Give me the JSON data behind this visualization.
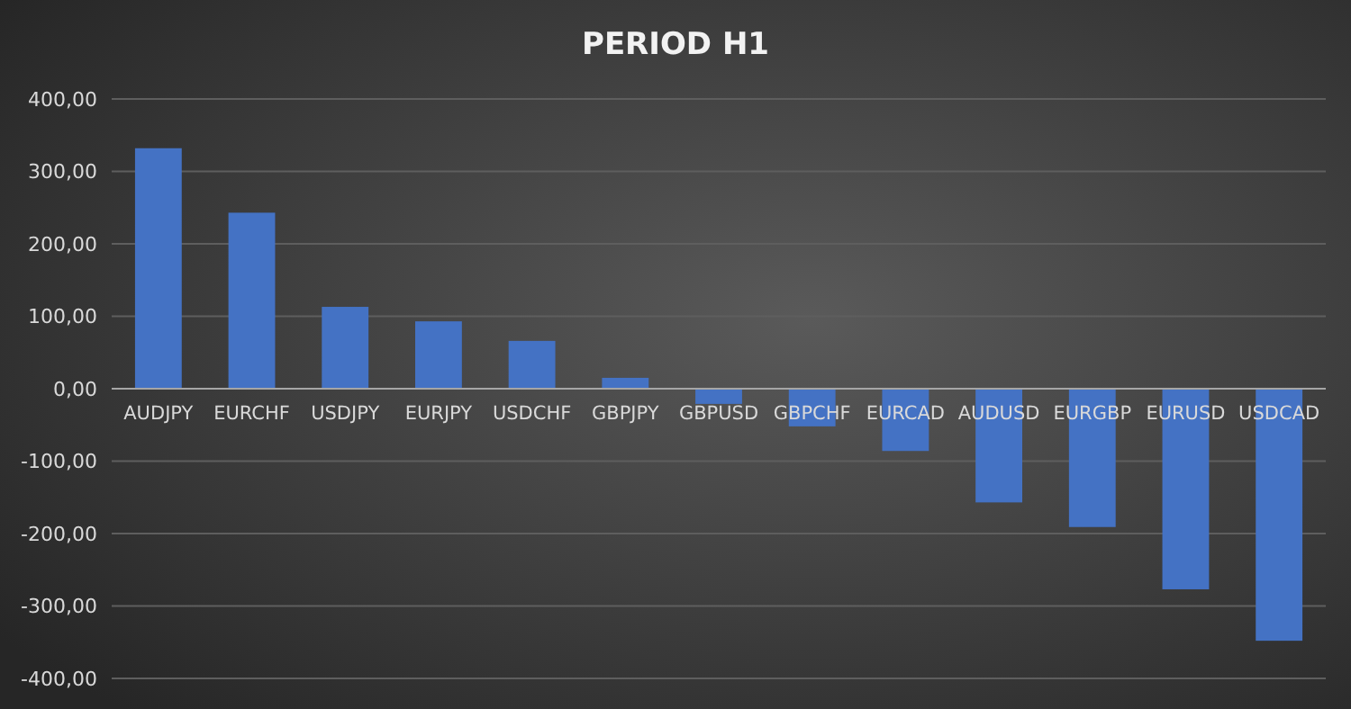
{
  "chart_data": {
    "type": "bar",
    "title": "PERIOD H1",
    "categories": [
      "AUDJPY",
      "EURCHF",
      "USDJPY",
      "EURJPY",
      "USDCHF",
      "GBPJPY",
      "GBPUSD",
      "GBPCHF",
      "EURCAD",
      "AUDUSD",
      "EURGBP",
      "EURUSD",
      "USDCAD"
    ],
    "values": [
      332,
      243,
      113,
      93,
      66,
      15,
      -21,
      -52,
      -86,
      -157,
      -191,
      -277,
      -348
    ],
    "color": "#4472c4",
    "ylim": [
      -400,
      400
    ],
    "yticks": [
      {
        "value": -400,
        "label": "-400,00"
      },
      {
        "value": -300,
        "label": "-300,00"
      },
      {
        "value": -200,
        "label": "-200,00"
      },
      {
        "value": -100,
        "label": "-100,00"
      },
      {
        "value": 0,
        "label": "0,00"
      },
      {
        "value": 100,
        "label": "100,00"
      },
      {
        "value": 200,
        "label": "200,00"
      },
      {
        "value": 300,
        "label": "300,00"
      },
      {
        "value": 400,
        "label": "400,00"
      }
    ],
    "grid": true
  }
}
